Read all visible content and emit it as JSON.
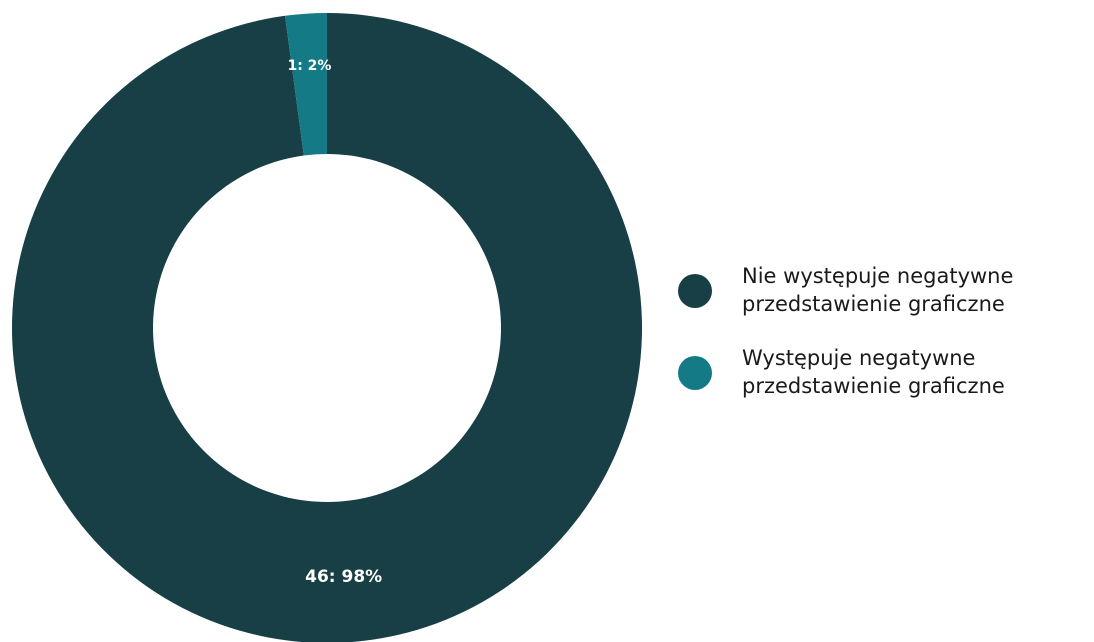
{
  "chart_data": {
    "type": "pie",
    "donut": true,
    "categories": [
      "Nie występuje negatywne przedstawienie graficzne",
      "Występuje negatywne przedstawienie graficzne"
    ],
    "values": [
      46,
      1
    ],
    "percentages": [
      98,
      2
    ],
    "data_labels": [
      "46: 98%",
      "1: 2%"
    ],
    "colors": [
      "#173f45",
      "#137a86"
    ],
    "legend_position": "right",
    "title": ""
  },
  "legend": {
    "items": [
      {
        "label": "Nie występuje negatywne przedstawienie graficzne",
        "color": "#173f45"
      },
      {
        "label": "Występuje negatywne przedstawienie graficzne",
        "color": "#137a86"
      }
    ]
  }
}
